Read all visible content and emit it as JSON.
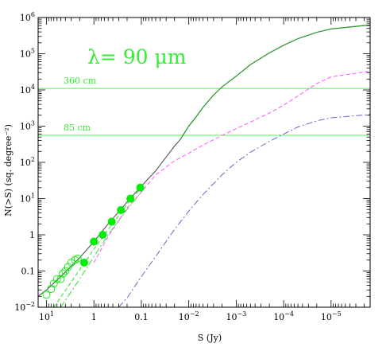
{
  "chart_data": {
    "type": "line",
    "title": "λ= 90  μm",
    "xlabel": "S (Jy)",
    "ylabel": "N(>S) (sq. degree⁻²)",
    "x_scale": "log",
    "y_scale": "log",
    "x_reversed": true,
    "xlim": [
      15,
      1.5e-06
    ],
    "ylim": [
      0.01,
      1000000
    ],
    "grid": false,
    "x_ticks": [
      {
        "value": 10,
        "base": "10",
        "exp": "1"
      },
      {
        "value": 1,
        "base": "1",
        "exp": ""
      },
      {
        "value": 0.1,
        "base": "0.1",
        "exp": ""
      },
      {
        "value": 0.01,
        "base": "10",
        "exp": "−2"
      },
      {
        "value": 0.001,
        "base": "10",
        "exp": "−3"
      },
      {
        "value": 0.0001,
        "base": "10",
        "exp": "−4"
      },
      {
        "value": 1e-05,
        "base": "10",
        "exp": "−5"
      }
    ],
    "y_ticks": [
      {
        "value": 0.01,
        "base": "10",
        "exp": "−2"
      },
      {
        "value": 0.1,
        "base": "0.1",
        "exp": ""
      },
      {
        "value": 1,
        "base": "1",
        "exp": ""
      },
      {
        "value": 10,
        "base": "10",
        "exp": "1"
      },
      {
        "value": 100,
        "base": "10",
        "exp": "2"
      },
      {
        "value": 1000,
        "base": "10",
        "exp": "3"
      },
      {
        "value": 10000,
        "base": "10",
        "exp": "4"
      },
      {
        "value": 100000,
        "base": "10",
        "exp": "5"
      },
      {
        "value": 1000000,
        "base": "10",
        "exp": "6"
      }
    ],
    "hlines": [
      {
        "y": 11000,
        "label": "360 cm"
      },
      {
        "y": 560,
        "label": "85 cm"
      }
    ],
    "series": [
      {
        "color": "#555555",
        "dash": "",
        "width": 1.1,
        "points": [
          [
            15,
            0.02
          ],
          [
            10,
            0.03
          ],
          [
            5,
            0.07
          ],
          [
            2,
            0.23
          ],
          [
            1,
            0.65
          ],
          [
            0.5,
            2.0
          ],
          [
            0.2,
            8
          ],
          [
            0.1,
            22
          ],
          [
            0.05,
            58
          ],
          [
            0.03,
            140
          ],
          [
            0.02,
            280
          ],
          [
            0.015,
            430
          ],
          [
            0.01,
            1000
          ],
          [
            0.007,
            1800
          ],
          [
            0.005,
            3300
          ],
          [
            0.003,
            7200
          ],
          [
            0.002,
            12000
          ],
          [
            0.001,
            24000
          ],
          [
            0.0005,
            50000
          ],
          [
            0.0002,
            105000
          ],
          [
            0.0001,
            170000
          ],
          [
            5e-05,
            260000
          ],
          [
            2e-05,
            390000
          ],
          [
            1e-05,
            480000
          ],
          [
            1.5e-06,
            620000
          ]
        ]
      },
      {
        "color": "#22aa22",
        "dash": "",
        "width": 1.0,
        "points": [
          [
            0.015,
            440
          ],
          [
            0.01,
            1020
          ],
          [
            0.007,
            1830
          ],
          [
            0.005,
            3350
          ],
          [
            0.003,
            7300
          ],
          [
            0.002,
            12100
          ],
          [
            0.001,
            24200
          ],
          [
            0.0005,
            50500
          ],
          [
            0.0002,
            106000
          ],
          [
            0.0001,
            172000
          ],
          [
            5e-05,
            262000
          ],
          [
            2e-05,
            393000
          ],
          [
            1e-05,
            485000
          ],
          [
            1.5e-06,
            630000
          ]
        ]
      },
      {
        "color": "#33dd33",
        "dash": "5,3",
        "width": 1.0,
        "points": [
          [
            7,
            0.01
          ],
          [
            3,
            0.05
          ],
          [
            1,
            0.4
          ],
          [
            0.5,
            1.4
          ],
          [
            0.2,
            7
          ],
          [
            0.1,
            20
          ]
        ]
      },
      {
        "color": "#33dd33",
        "dash": "8,3,2,3",
        "width": 1.0,
        "points": [
          [
            5,
            0.01
          ],
          [
            2,
            0.06
          ],
          [
            1,
            0.25
          ],
          [
            0.5,
            1.0
          ],
          [
            0.2,
            5
          ],
          [
            0.1,
            15
          ]
        ]
      },
      {
        "color": "#ff55ff",
        "dash": "5,3",
        "width": 1.0,
        "points": [
          [
            1,
            0.17
          ],
          [
            0.5,
            0.9
          ],
          [
            0.2,
            5.5
          ],
          [
            0.1,
            15
          ],
          [
            0.05,
            45
          ],
          [
            0.02,
            110
          ],
          [
            0.01,
            180
          ],
          [
            0.005,
            300
          ],
          [
            0.002,
            550
          ],
          [
            0.001,
            850
          ],
          [
            0.0005,
            1300
          ],
          [
            0.0002,
            2300
          ],
          [
            0.0001,
            3800
          ],
          [
            5e-05,
            6800
          ],
          [
            2e-05,
            15000
          ],
          [
            1e-05,
            23000
          ],
          [
            1.5e-06,
            33000
          ]
        ]
      },
      {
        "color": "#6666cc",
        "dash": "8,3,2,3",
        "width": 1.0,
        "points": [
          [
            0.3,
            0.01
          ],
          [
            0.2,
            0.018
          ],
          [
            0.1,
            0.07
          ],
          [
            0.05,
            0.25
          ],
          [
            0.02,
            1.4
          ],
          [
            0.01,
            4.5
          ],
          [
            0.005,
            13
          ],
          [
            0.002,
            45
          ],
          [
            0.001,
            100
          ],
          [
            0.0005,
            190
          ],
          [
            0.0002,
            380
          ],
          [
            0.0001,
            600
          ],
          [
            5e-05,
            950
          ],
          [
            2e-05,
            1400
          ],
          [
            1e-05,
            1700
          ],
          [
            1.5e-06,
            2100
          ]
        ]
      }
    ],
    "filled_points": [
      [
        1.6,
        0.17
      ],
      [
        1.0,
        0.65
      ],
      [
        0.65,
        1.0
      ],
      [
        0.42,
        2.3
      ],
      [
        0.27,
        4.8
      ],
      [
        0.17,
        10
      ],
      [
        0.105,
        20
      ]
    ],
    "open_points": [
      [
        10,
        0.022
      ],
      [
        8,
        0.032
      ],
      [
        7,
        0.045
      ],
      [
        6,
        0.06
      ],
      [
        5,
        0.06
      ],
      [
        4.5,
        0.085
      ],
      [
        4,
        0.1
      ],
      [
        3.5,
        0.13
      ],
      [
        3,
        0.17
      ],
      [
        2.5,
        0.2
      ],
      [
        2.2,
        0.22
      ]
    ],
    "colors": {
      "data_points": "#00ee00",
      "hlines": "#55ee55",
      "annotation": "#33ee33"
    }
  }
}
